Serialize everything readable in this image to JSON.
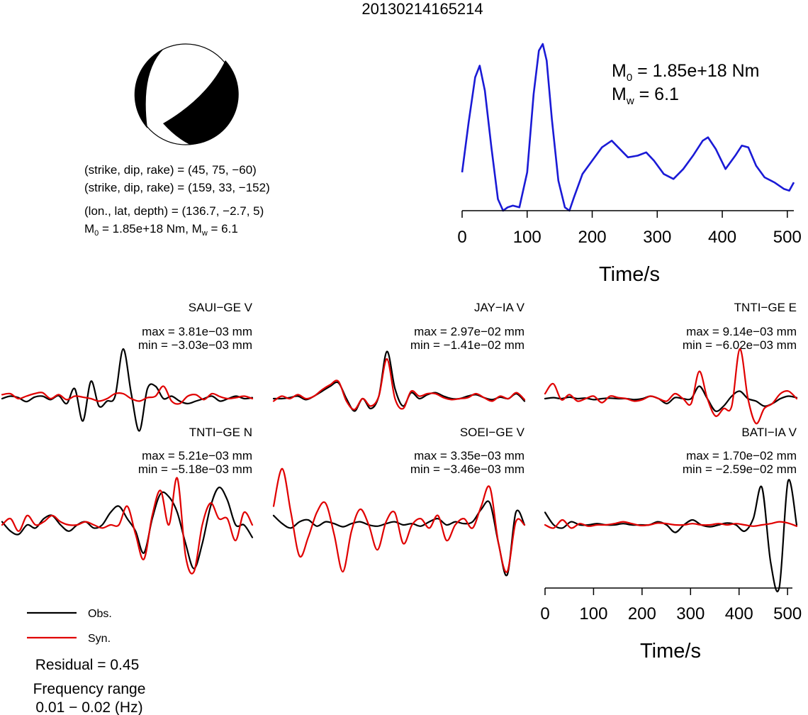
{
  "title": "20130214165214",
  "mechanism_info": {
    "plane1_label": "(strike, dip, rake) = (45, 75, −60)",
    "plane2_label": "(strike, dip, rake) = (159, 33, −152)",
    "location_label": "(lon., lat, depth) = (136.7, −2.7, 5)",
    "moment_label_prefix": "M",
    "moment_label_sub": "0",
    "moment_label_mid": " = 1.85e+18 Nm, M",
    "moment_label_sub2": "w",
    "moment_label_end": " = 6.1"
  },
  "stf_annotation": {
    "m0_symbol": "M",
    "m0_sub": "0",
    "m0_text": " = 1.85e+18 Nm",
    "mw_symbol": "M",
    "mw_sub": "w",
    "mw_text": " = 6.1"
  },
  "legend": {
    "obs_label": "Obs.",
    "syn_label": "Syn.",
    "obs_color": "#000000",
    "syn_color": "#e00000"
  },
  "footer": {
    "residual": "Residual = 0.45",
    "freq_title": "Frequency range",
    "freq_value": "0.01 − 0.02 (Hz)"
  },
  "colors": {
    "stf": "#1a1ad6",
    "obs": "#000000",
    "syn": "#e00000",
    "beachball_fill": "#000000"
  },
  "chart_data": [
    {
      "type": "line",
      "name": "source-time-function",
      "xlabel": "Time/s",
      "ylabel": "",
      "xlim": [
        0,
        510
      ],
      "xticks": [
        0,
        100,
        200,
        300,
        400,
        500
      ],
      "grid": false,
      "series": [
        {
          "values_x": [
            0,
            10,
            20,
            27,
            35,
            45,
            55,
            63,
            70,
            78,
            88,
            100,
            110,
            118,
            124,
            130,
            138,
            148,
            158,
            165,
            172,
            185,
            200,
            215,
            230,
            240,
            255,
            270,
            283,
            295,
            310,
            325,
            340,
            355,
            370,
            378,
            390,
            405,
            420,
            430,
            440,
            452,
            465,
            480,
            495,
            503,
            510
          ],
          "values_y": [
            0.23,
            0.53,
            0.8,
            0.87,
            0.72,
            0.38,
            0.07,
            0.0,
            0.02,
            0.03,
            0.02,
            0.23,
            0.7,
            0.96,
            1.0,
            0.9,
            0.55,
            0.18,
            0.02,
            0.0,
            0.08,
            0.22,
            0.3,
            0.38,
            0.42,
            0.38,
            0.32,
            0.33,
            0.35,
            0.3,
            0.22,
            0.19,
            0.25,
            0.33,
            0.42,
            0.44,
            0.37,
            0.25,
            0.33,
            0.39,
            0.38,
            0.27,
            0.2,
            0.17,
            0.13,
            0.12,
            0.17
          ]
        }
      ]
    },
    {
      "type": "line",
      "name": "waveform-fits",
      "xlabel": "Time/s",
      "ylabel": "",
      "xlim": [
        0,
        510
      ],
      "xticks": [
        0,
        100,
        200,
        300,
        400,
        500
      ],
      "grid": false,
      "stations": [
        {
          "name": "SAUI−GE V",
          "max_label": "max = 3.81e−03 mm",
          "min_label": "min = −3.03e−03 mm",
          "obs": [
            0.0,
            0.05,
            0.02,
            -0.06,
            0.03,
            0.05,
            -0.02,
            0.06,
            -0.1,
            0.2,
            -0.45,
            0.35,
            -0.15,
            -0.05,
            0.05,
            1.0,
            0.1,
            -0.65,
            0.2,
            0.25,
            0.0,
            0.05,
            -0.05,
            -0.1,
            -0.05,
            0.0,
            0.05,
            -0.05,
            0.0,
            0.05,
            0.0,
            0.02
          ],
          "syn": [
            0.08,
            0.1,
            0.0,
            0.05,
            0.1,
            0.12,
            0.0,
            0.08,
            -0.02,
            0.05,
            0.03,
            0.0,
            -0.05,
            0.0,
            0.1,
            0.1,
            0.0,
            -0.05,
            0.02,
            0.05,
            0.25,
            -0.05,
            -0.1,
            0.05,
            0.08,
            -0.02,
            0.1,
            0.04,
            0.0,
            0.02,
            0.05,
            0.0
          ]
        },
        {
          "name": "JAY−IA V",
          "max_label": "max = 2.97e−02 mm",
          "min_label": "min = −1.41e−02 mm",
          "obs": [
            0.0,
            0.0,
            0.02,
            0.05,
            -0.02,
            0.05,
            0.15,
            0.25,
            0.32,
            0.0,
            -0.25,
            0.0,
            -0.2,
            0.05,
            0.95,
            0.2,
            -0.15,
            0.12,
            0.0,
            0.08,
            0.12,
            0.05,
            0.0,
            0.0,
            0.05,
            0.08,
            0.02,
            -0.02,
            0.03,
            0.0,
            0.1,
            -0.05
          ],
          "syn": [
            -0.05,
            0.05,
            0.0,
            0.08,
            0.0,
            0.05,
            0.18,
            0.28,
            0.35,
            -0.05,
            -0.22,
            0.0,
            -0.15,
            0.05,
            0.8,
            0.0,
            -0.2,
            0.15,
            0.05,
            0.1,
            0.1,
            0.02,
            -0.02,
            0.0,
            0.02,
            0.1,
            0.02,
            -0.05,
            0.05,
            0.0,
            0.12,
            -0.02
          ]
        },
        {
          "name": "TNTI−GE E",
          "max_label": "max = 9.14e−03 mm",
          "min_label": "min = −6.02e−03 mm",
          "obs": [
            0.0,
            0.02,
            0.0,
            0.03,
            0.0,
            0.01,
            -0.02,
            0.0,
            0.01,
            0.0,
            0.0,
            -0.02,
            0.0,
            0.05,
            0.0,
            -0.1,
            0.02,
            0.0,
            0.0,
            0.25,
            0.0,
            -0.25,
            -0.15,
            0.05,
            0.15,
            0.0,
            -0.05,
            -0.15,
            -0.1,
            0.0,
            0.05,
            0.02
          ],
          "syn": [
            0.1,
            0.3,
            -0.02,
            0.08,
            -0.05,
            0.0,
            0.05,
            -0.08,
            0.05,
            0.02,
            0.0,
            -0.05,
            -0.02,
            0.05,
            0.0,
            -0.05,
            0.1,
            0.0,
            -0.1,
            0.55,
            0.0,
            -0.35,
            -0.2,
            -0.15,
            1.0,
            0.0,
            -0.5,
            -0.2,
            -0.1,
            0.1,
            0.15,
            0.0
          ]
        },
        {
          "name": "TNTI−GE N",
          "max_label": "max = 5.21e−03 mm",
          "min_label": "min = −5.18e−03 mm",
          "obs": [
            0.05,
            -0.1,
            -0.15,
            0.0,
            -0.05,
            0.1,
            0.15,
            0.0,
            -0.1,
            0.0,
            0.05,
            -0.05,
            0.0,
            0.2,
            0.3,
            0.1,
            -0.1,
            -0.45,
            0.1,
            0.5,
            0.45,
            0.2,
            -0.3,
            -0.7,
            -0.3,
            0.3,
            0.6,
            0.4,
            0.0,
            0.0,
            -0.2
          ],
          "syn": [
            0.0,
            0.1,
            -0.1,
            0.15,
            0.0,
            0.05,
            0.15,
            0.05,
            0.0,
            0.0,
            0.05,
            0.0,
            -0.05,
            0.0,
            0.0,
            0.3,
            -0.15,
            -0.55,
            0.15,
            0.55,
            0.0,
            0.75,
            -0.5,
            -0.75,
            0.0,
            0.35,
            0.1,
            0.1,
            -0.25,
            0.2,
            0.0
          ]
        },
        {
          "name": "SOEI−GE V",
          "max_label": "max = 3.35e−03 mm",
          "min_label": "min = −3.46e−03 mm",
          "obs": [
            0.15,
            0.02,
            -0.05,
            0.05,
            0.08,
            -0.02,
            0.05,
            0.02,
            -0.03,
            0.02,
            0.05,
            0.0,
            -0.02,
            0.02,
            0.05,
            0.0,
            0.02,
            -0.02,
            0.05,
            0.1,
            0.0,
            0.05,
            0.02,
            0.05,
            0.25,
            0.35,
            -0.3,
            -0.8,
            0.2,
            0.0
          ],
          "syn": [
            0.3,
            0.9,
            0.2,
            -0.5,
            -0.2,
            0.2,
            0.35,
            -0.15,
            -0.75,
            -0.1,
            0.25,
            0.0,
            -0.4,
            0.05,
            0.2,
            -0.3,
            0.0,
            0.1,
            -0.05,
            0.15,
            -0.25,
            0.0,
            0.1,
            -0.05,
            0.3,
            0.6,
            -0.3,
            -0.75,
            0.05,
            0.0
          ]
        },
        {
          "name": "BATI−IA V",
          "max_label": "max = 1.70e−02 mm",
          "min_label": "min = −2.59e−02 mm",
          "obs": [
            0.2,
            0.0,
            -0.05,
            0.05,
            0.0,
            0.0,
            0.02,
            0.0,
            0.0,
            0.02,
            0.0,
            0.0,
            0.0,
            0.05,
            0.0,
            -0.12,
            0.0,
            0.08,
            0.0,
            -0.03,
            0.0,
            0.03,
            0.0,
            -0.1,
            0.1,
            0.6,
            -0.6,
            -1.0,
            0.7,
            0.0
          ],
          "syn": [
            0.0,
            -0.05,
            0.08,
            -0.05,
            0.02,
            -0.02,
            0.0,
            0.0,
            0.02,
            0.05,
            0.02,
            -0.01,
            0.0,
            0.03,
            0.02,
            0.0,
            0.0,
            0.02,
            0.0,
            0.0,
            0.02,
            0.0,
            0.02,
            0.0,
            -0.02,
            0.0,
            0.02,
            0.05,
            0.03,
            -0.02
          ]
        }
      ]
    }
  ]
}
